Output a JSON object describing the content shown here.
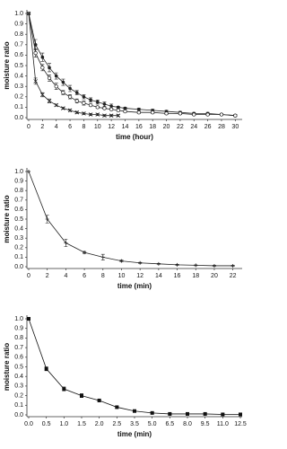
{
  "chart_data": [
    {
      "type": "line",
      "ylabel": "moisture ratio",
      "xlabel": "time (hour)",
      "xlim": [
        0,
        31
      ],
      "xticks": [
        0,
        2,
        4,
        6,
        8,
        10,
        12,
        14,
        16,
        18,
        20,
        22,
        24,
        26,
        28,
        30
      ],
      "ylim": [
        0,
        1
      ],
      "yticks": [
        {
          "value": 0,
          "label": "0.0"
        },
        0.1,
        0.2,
        0.3,
        0.4,
        0.5,
        0.6,
        0.7,
        0.8,
        0.9,
        {
          "value": 1,
          "label": "1.0"
        }
      ],
      "series": [
        {
          "color": "#222222",
          "marker": "filled-circle",
          "x": [
            0,
            1,
            2,
            3,
            4,
            5,
            6,
            7,
            8,
            9,
            10,
            11,
            12,
            13,
            14,
            16,
            18,
            20,
            22,
            24,
            26,
            28,
            30
          ],
          "values": [
            1.0,
            0.7,
            0.58,
            0.48,
            0.4,
            0.34,
            0.28,
            0.24,
            0.2,
            0.17,
            0.15,
            0.13,
            0.11,
            0.1,
            0.09,
            0.08,
            0.07,
            0.06,
            0.05,
            0.04,
            0.04,
            0.03,
            0.02
          ],
          "errors": [
            0,
            0.05,
            0.04,
            0.04,
            0.03,
            0.03,
            0.03,
            0.02,
            0.02,
            0.02,
            0.02,
            0.02,
            0.02,
            0.01,
            0.01,
            0.01,
            0.01,
            0.01,
            0.01,
            0.01,
            0.01,
            0.01,
            0.01
          ]
        },
        {
          "color": "#222222",
          "marker": "open-circle",
          "x": [
            0,
            1,
            2,
            3,
            4,
            5,
            6,
            7,
            8,
            9,
            10,
            11,
            12,
            13,
            14,
            16,
            18,
            20,
            22,
            24,
            26,
            28,
            30
          ],
          "values": [
            1.0,
            0.62,
            0.48,
            0.38,
            0.3,
            0.24,
            0.2,
            0.16,
            0.14,
            0.12,
            0.1,
            0.09,
            0.08,
            0.07,
            0.06,
            0.05,
            0.05,
            0.04,
            0.04,
            0.03,
            0.03,
            0.03,
            0.02
          ],
          "errors": [
            0,
            0.04,
            0.03,
            0.03,
            0.03,
            0.02,
            0.02,
            0.02,
            0.02,
            0.01,
            0.01,
            0.01,
            0.01,
            0.01,
            0.01,
            0.01,
            0.01,
            0.01,
            0.01,
            0.01,
            0.01,
            0.01,
            0.01
          ]
        },
        {
          "color": "#222222",
          "marker": "cross",
          "x": [
            0,
            1,
            2,
            3,
            4,
            5,
            6,
            7,
            8,
            9,
            10,
            11,
            12,
            13
          ],
          "values": [
            1.0,
            0.35,
            0.22,
            0.16,
            0.12,
            0.09,
            0.07,
            0.05,
            0.04,
            0.03,
            0.03,
            0.02,
            0.02,
            0.02
          ],
          "errors": [
            0,
            0.03,
            0.02,
            0.02,
            0.01,
            0.01,
            0.01,
            0.01,
            0.01,
            0.01,
            0.01,
            0.01,
            0.01,
            0.01
          ]
        }
      ]
    },
    {
      "type": "line",
      "ylabel": "moisture ratio",
      "xlabel": "time (min)",
      "xlim": [
        0,
        23
      ],
      "xticks": [
        0,
        2,
        4,
        6,
        8,
        10,
        12,
        14,
        16,
        18,
        20,
        22
      ],
      "ylim": [
        0,
        1
      ],
      "yticks": [
        {
          "value": 0,
          "label": "0.0"
        },
        0.1,
        0.2,
        0.3,
        0.4,
        0.5,
        0.6,
        0.7,
        0.8,
        0.9,
        {
          "value": 1,
          "label": "1.0"
        }
      ],
      "color": "#222222",
      "marker": "plus",
      "x": [
        0,
        2,
        4,
        6,
        8,
        10,
        12,
        14,
        16,
        18,
        20,
        22
      ],
      "values": [
        1.0,
        0.5,
        0.25,
        0.15,
        0.1,
        0.06,
        0.04,
        0.03,
        0.02,
        0.015,
        0.01,
        0.01
      ],
      "errors": [
        0,
        0.04,
        0.04,
        0.01,
        0.03,
        0.01,
        0.005,
        0.005,
        0.005,
        0.005,
        0.005,
        0.005
      ]
    },
    {
      "type": "line",
      "ylabel": "moisture ratio",
      "xlabel": "time (min)",
      "categories": [
        "0.0",
        "0.5",
        "1.0",
        "1.5",
        "2.0",
        "2.5",
        "3.5",
        "5.0",
        "6.5",
        "8.0",
        "9.5",
        "11.0",
        "12.5"
      ],
      "ylim": [
        0,
        1
      ],
      "yticks": [
        {
          "value": 0,
          "label": "0.0"
        },
        0.1,
        0.2,
        0.3,
        0.4,
        0.5,
        0.6,
        0.7,
        0.8,
        0.9,
        {
          "value": 1,
          "label": "1.0"
        }
      ],
      "color": "#111111",
      "marker": "square",
      "values": [
        1.0,
        0.48,
        0.27,
        0.2,
        0.15,
        0.08,
        0.04,
        0.02,
        0.01,
        0.01,
        0.01,
        0.005,
        0.005
      ],
      "errors": [
        0,
        0.02,
        0.02,
        0.02,
        0.01,
        0.01,
        0.01,
        0.005,
        0.005,
        0.005,
        0.005,
        0.005,
        0.005
      ]
    }
  ]
}
